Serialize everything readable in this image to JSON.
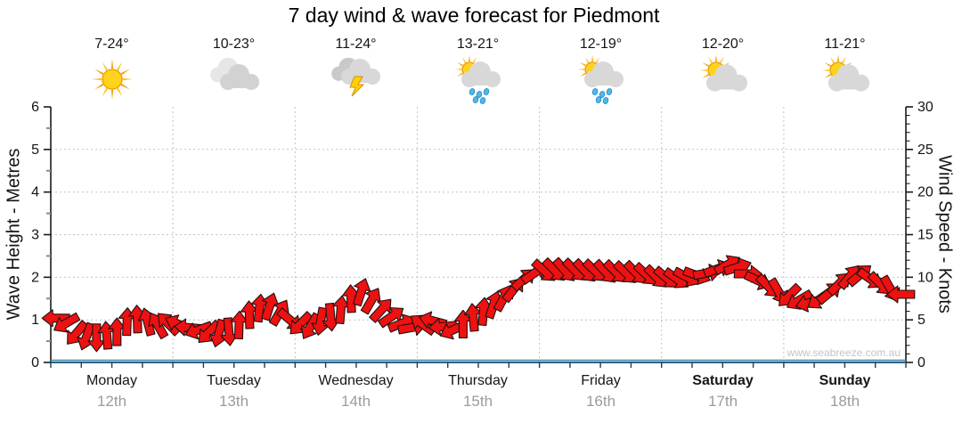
{
  "title": "7 day wind & wave forecast for Piedmont",
  "watermark": "www.seabreeze.com.au",
  "days": [
    {
      "name": "Monday",
      "date": "12th",
      "temp": "7-24°",
      "icon": "sunny",
      "weekend": false
    },
    {
      "name": "Tuesday",
      "date": "13th",
      "temp": "10-23°",
      "icon": "cloudy",
      "weekend": false
    },
    {
      "name": "Wednesday",
      "date": "14th",
      "temp": "11-24°",
      "icon": "storm",
      "weekend": false
    },
    {
      "name": "Thursday",
      "date": "15th",
      "temp": "13-21°",
      "icon": "sun-shower",
      "weekend": false
    },
    {
      "name": "Friday",
      "date": "16th",
      "temp": "12-19°",
      "icon": "sun-shower",
      "weekend": false
    },
    {
      "name": "Saturday",
      "date": "17th",
      "temp": "12-20°",
      "icon": "partly-cloudy",
      "weekend": true
    },
    {
      "name": "Sunday",
      "date": "18th",
      "temp": "11-21°",
      "icon": "partly-cloudy",
      "weekend": true
    }
  ],
  "chart_data": {
    "type": "line",
    "subtype": "wind-direction-arrows",
    "title": "7 day wind & wave forecast for Piedmont",
    "left_axis": {
      "label": "Wave Height - Metres",
      "ticks": [
        0,
        1,
        2,
        3,
        4,
        5,
        6
      ],
      "range": [
        0,
        6
      ]
    },
    "right_axis": {
      "label": "Wind Speed - Knots",
      "ticks": [
        0,
        5,
        10,
        15,
        20,
        25,
        30
      ],
      "range": [
        0,
        30
      ]
    },
    "categories": [
      "Monday 12th",
      "Tuesday 13th",
      "Wednesday 14th",
      "Thursday 15th",
      "Friday 16th",
      "Saturday 17th",
      "Sunday 18th"
    ],
    "points_per_day": 12,
    "wind_knots": [
      5.2,
      4.6,
      3.4,
      3.0,
      2.9,
      3.2,
      3.6,
      4.8,
      5.1,
      4.8,
      4.4,
      4.6,
      4.5,
      4.1,
      3.8,
      3.5,
      3.4,
      3.6,
      4.4,
      5.6,
      6.4,
      6.6,
      5.9,
      5.0,
      4.5,
      4.2,
      4.8,
      5.3,
      6.2,
      7.5,
      8.3,
      7.3,
      6.2,
      5.4,
      4.6,
      4.1,
      4.5,
      4.9,
      4.2,
      3.8,
      4.5,
      5.3,
      6.0,
      6.8,
      7.6,
      8.6,
      9.8,
      10.5,
      10.7,
      10.8,
      10.8,
      10.8,
      10.7,
      10.7,
      10.6,
      10.6,
      10.5,
      10.5,
      10.3,
      10.0,
      9.9,
      9.8,
      10.0,
      10.2,
      10.5,
      11.0,
      11.5,
      11.2,
      10.4,
      9.6,
      8.9,
      8.3,
      7.8,
      7.3,
      7.0,
      7.4,
      8.2,
      9.3,
      10.1,
      10.3,
      9.8,
      9.2,
      8.6,
      8.0
    ],
    "wind_dir_deg": [
      180,
      150,
      130,
      110,
      90,
      265,
      270,
      272,
      268,
      255,
      240,
      225,
      205,
      185,
      160,
      135,
      105,
      85,
      272,
      268,
      276,
      288,
      300,
      40,
      135,
      120,
      100,
      85,
      275,
      268,
      288,
      300,
      312,
      325,
      338,
      350,
      215,
      195,
      175,
      155,
      270,
      265,
      275,
      288,
      298,
      308,
      318,
      325,
      42,
      45,
      48,
      44,
      46,
      43,
      47,
      45,
      44,
      46,
      43,
      45,
      40,
      35,
      28,
      20,
      350,
      340,
      330,
      342,
      0,
      25,
      45,
      60,
      135,
      150,
      165,
      145,
      320,
      315,
      310,
      320,
      35,
      45,
      60,
      180
    ],
    "wave_metres_flat": 0.05,
    "grid": true,
    "colors": {
      "arrow_fill": "#ee1111",
      "arrow_stroke": "#221111",
      "grid": "#c2c2c2",
      "axis": "#1a1a1a",
      "x_axis_line": "#2e6285",
      "minor_tick": "#8a8a8a",
      "watermark": "#c4c4c4"
    }
  }
}
